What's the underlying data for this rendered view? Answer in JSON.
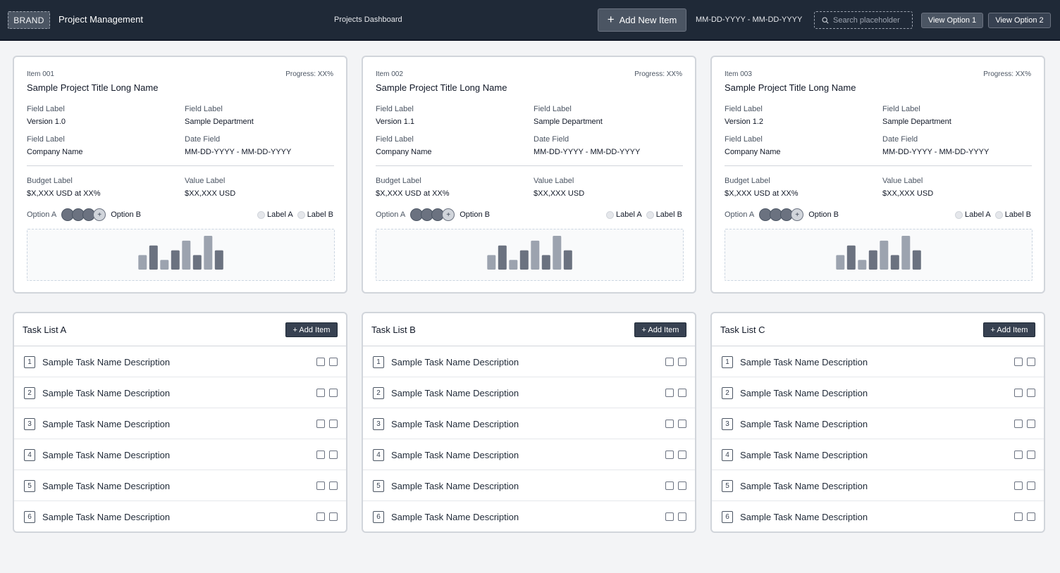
{
  "header": {
    "brand": "BRAND",
    "app_title": "Project Management",
    "page_title": "Projects Dashboard",
    "add_new_label": "Add New Item",
    "date_range": "MM-DD-YYYY - MM-DD-YYYY",
    "search_placeholder": "Search placeholder",
    "view_option_1": "View Option 1",
    "view_option_2": "View Option 2"
  },
  "projects": [
    {
      "id": "Item 001",
      "progress": "Progress: XX%",
      "title": "Sample Project Title Long Name",
      "field1_label": "Field Label",
      "field1_value": "Version 1.0",
      "field2_label": "Field Label",
      "field2_value": "Sample Department",
      "field3_label": "Field Label",
      "field3_value": "Company Name",
      "date_label": "Date Field",
      "date_value": "MM-DD-YYYY - MM-DD-YYYY",
      "budget_label": "Budget Label",
      "budget_value": "$X,XXX USD at XX%",
      "value_label": "Value Label",
      "value_value": "$XX,XXX USD",
      "option_a": "Option A",
      "option_b": "Option B",
      "legend_a": "Label A",
      "legend_b": "Label B"
    },
    {
      "id": "Item 002",
      "progress": "Progress: XX%",
      "title": "Sample Project Title Long Name",
      "field1_label": "Field Label",
      "field1_value": "Version 1.1",
      "field2_label": "Field Label",
      "field2_value": "Sample Department",
      "field3_label": "Field Label",
      "field3_value": "Company Name",
      "date_label": "Date Field",
      "date_value": "MM-DD-YYYY - MM-DD-YYYY",
      "budget_label": "Budget Label",
      "budget_value": "$X,XXX USD at XX%",
      "value_label": "Value Label",
      "value_value": "$XX,XXX USD",
      "option_a": "Option A",
      "option_b": "Option B",
      "legend_a": "Label A",
      "legend_b": "Label B"
    },
    {
      "id": "Item 003",
      "progress": "Progress: XX%",
      "title": "Sample Project Title Long Name",
      "field1_label": "Field Label",
      "field1_value": "Version 1.2",
      "field2_label": "Field Label",
      "field2_value": "Sample Department",
      "field3_label": "Field Label",
      "field3_value": "Company Name",
      "date_label": "Date Field",
      "date_value": "MM-DD-YYYY - MM-DD-YYYY",
      "budget_label": "Budget Label",
      "budget_value": "$X,XXX USD at XX%",
      "value_label": "Value Label",
      "value_value": "$XX,XXX USD",
      "option_a": "Option A",
      "option_b": "Option B",
      "legend_a": "Label A",
      "legend_b": "Label B"
    }
  ],
  "mini_chart": {
    "values": [
      3,
      5,
      2,
      4,
      6,
      3,
      7,
      4
    ],
    "colors": [
      "#9ca3af",
      "#6b7280",
      "#9ca3af",
      "#6b7280",
      "#9ca3af",
      "#6b7280",
      "#9ca3af",
      "#6b7280"
    ]
  },
  "task_lists": [
    {
      "title": "Task List A",
      "add_label": "+ Add Item",
      "tasks": [
        {
          "num": "1",
          "name": "Sample Task Name Description"
        },
        {
          "num": "2",
          "name": "Sample Task Name Description"
        },
        {
          "num": "3",
          "name": "Sample Task Name Description"
        },
        {
          "num": "4",
          "name": "Sample Task Name Description"
        },
        {
          "num": "5",
          "name": "Sample Task Name Description"
        },
        {
          "num": "6",
          "name": "Sample Task Name Description"
        }
      ]
    },
    {
      "title": "Task List B",
      "add_label": "+ Add Item",
      "tasks": [
        {
          "num": "1",
          "name": "Sample Task Name Description"
        },
        {
          "num": "2",
          "name": "Sample Task Name Description"
        },
        {
          "num": "3",
          "name": "Sample Task Name Description"
        },
        {
          "num": "4",
          "name": "Sample Task Name Description"
        },
        {
          "num": "5",
          "name": "Sample Task Name Description"
        },
        {
          "num": "6",
          "name": "Sample Task Name Description"
        }
      ]
    },
    {
      "title": "Task List C",
      "add_label": "+ Add Item",
      "tasks": [
        {
          "num": "1",
          "name": "Sample Task Name Description"
        },
        {
          "num": "2",
          "name": "Sample Task Name Description"
        },
        {
          "num": "3",
          "name": "Sample Task Name Description"
        },
        {
          "num": "4",
          "name": "Sample Task Name Description"
        },
        {
          "num": "5",
          "name": "Sample Task Name Description"
        },
        {
          "num": "6",
          "name": "Sample Task Name Description"
        }
      ]
    }
  ]
}
